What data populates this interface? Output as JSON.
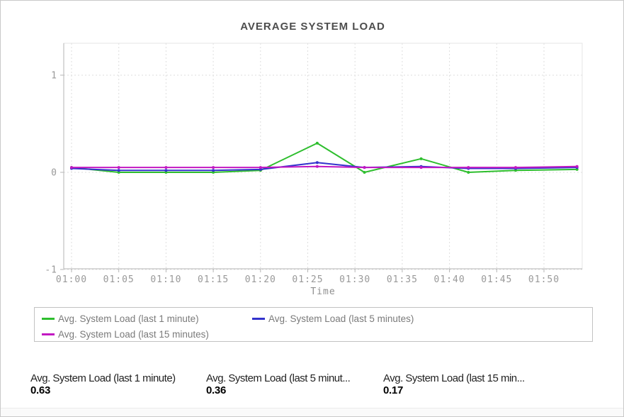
{
  "page": {
    "title": "AVERAGE SYSTEM LOAD"
  },
  "chart_data": {
    "type": "line",
    "title": "AVERAGE SYSTEM LOAD",
    "xlabel": "Time",
    "ylabel": "",
    "ylim": [
      -1,
      1.35
    ],
    "grid": true,
    "legend_position": "bottom",
    "y_ticks": [
      {
        "value": 1,
        "label": "1"
      },
      {
        "value": 0,
        "label": "0"
      },
      {
        "value": -1,
        "label": "-1"
      }
    ],
    "x_ticks": [
      {
        "minute": 0,
        "label": "01:00"
      },
      {
        "minute": 5,
        "label": "01:05"
      },
      {
        "minute": 10,
        "label": "01:10"
      },
      {
        "minute": 15,
        "label": "01:15"
      },
      {
        "minute": 20,
        "label": "01:20"
      },
      {
        "minute": 25,
        "label": "01:25"
      },
      {
        "minute": 30,
        "label": "01:30"
      },
      {
        "minute": 35,
        "label": "01:35"
      },
      {
        "minute": 40,
        "label": "01:40"
      },
      {
        "minute": 45,
        "label": "01:45"
      },
      {
        "minute": 50,
        "label": "01:50"
      }
    ],
    "x_minutes": [
      0,
      5,
      10,
      15,
      20,
      26,
      31,
      37,
      42,
      47,
      53.5
    ],
    "series": [
      {
        "name": "Avg. System Load (last 1 minute)",
        "color": "#2ebe2e",
        "values": [
          0.05,
          0.0,
          0.0,
          0.0,
          0.02,
          0.3,
          0.0,
          0.14,
          0.0,
          0.02,
          0.03
        ]
      },
      {
        "name": "Avg. System Load (last 5 minutes)",
        "color": "#3333cc",
        "values": [
          0.04,
          0.02,
          0.02,
          0.02,
          0.03,
          0.1,
          0.05,
          0.06,
          0.04,
          0.04,
          0.05
        ]
      },
      {
        "name": "Avg. System Load (last 15 minutes)",
        "color": "#c218c2",
        "values": [
          0.05,
          0.05,
          0.05,
          0.05,
          0.05,
          0.06,
          0.05,
          0.05,
          0.05,
          0.05,
          0.06
        ]
      }
    ]
  },
  "legend": {
    "items": [
      {
        "label": "Avg. System Load (last 1 minute)",
        "color": "#2ebe2e"
      },
      {
        "label": "Avg. System Load (last 5 minutes)",
        "color": "#3333cc"
      },
      {
        "label": "Avg. System Load (last 15 minutes)",
        "color": "#c218c2"
      }
    ]
  },
  "stats": [
    {
      "label": "Avg. System Load (last 1 minute)",
      "value": "0.63"
    },
    {
      "label": "Avg. System Load (last 5 minut...",
      "value": "0.36"
    },
    {
      "label": "Avg. System Load (last 15 min...",
      "value": "0.17"
    }
  ]
}
